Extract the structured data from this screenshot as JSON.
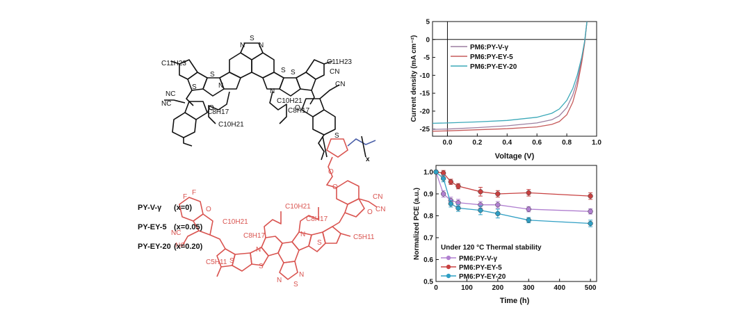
{
  "structure": {
    "labels_top": [
      "N",
      "S",
      "N",
      "C11H23",
      "C11H23",
      "S",
      "S",
      "N",
      "N",
      "S",
      "S",
      "C8H17",
      "C8H17",
      "C10H21",
      "C10H21",
      "NC",
      "NC",
      "CN",
      "CN",
      "O",
      "O",
      "S",
      "x"
    ],
    "labels_bottom": [
      "F",
      "F",
      "C10H21",
      "C8H17",
      "C10H21",
      "C8H17",
      "N",
      "N",
      "S",
      "S",
      "S",
      "S",
      "N",
      "N",
      "C5H11",
      "C5H11",
      "NC",
      "NC",
      "CN",
      "CN",
      "O",
      "O",
      "O",
      "O"
    ],
    "colors": {
      "top": "#111111",
      "bottom": "#d9534f",
      "side_chain": "#4a5fa8"
    }
  },
  "legend_copolymers": [
    {
      "name": "PY-V-γ",
      "x": "(x=0)"
    },
    {
      "name": "PY-EY-5",
      "x": "(x=0.05)"
    },
    {
      "name": "PY-EY-20",
      "x": "(x=0.20)"
    }
  ],
  "chart_data": [
    {
      "type": "line",
      "xlabel": "Voltage (V)",
      "ylabel": "Current density (mA cm⁻²)",
      "xlim": [
        -0.1,
        1.0
      ],
      "ylim": [
        -27,
        5
      ],
      "xticks": [
        0.0,
        0.2,
        0.4,
        0.6,
        0.8,
        1.0
      ],
      "yticks": [
        5,
        0,
        -5,
        -10,
        -15,
        -20,
        -25
      ],
      "xtick_labels": [
        "0.0",
        "0.2",
        "0.4",
        "0.6",
        "0.8",
        "1.0"
      ],
      "ytick_labels": [
        "5",
        "0",
        "-5",
        "-10",
        "-15",
        "-20",
        "-25"
      ],
      "legend_position": "top-left",
      "series": [
        {
          "name": "PM6:PY-V-γ",
          "color": "#9b7fa0",
          "x": [
            -0.1,
            0.0,
            0.2,
            0.4,
            0.6,
            0.7,
            0.75,
            0.8,
            0.84,
            0.87,
            0.9,
            0.92,
            0.935
          ],
          "y": [
            -25.1,
            -25.0,
            -24.6,
            -24.1,
            -23.3,
            -22.4,
            -21.3,
            -19.0,
            -15.5,
            -11.5,
            -5.5,
            -0.5,
            5.0
          ]
        },
        {
          "name": "PM6:PY-EY-5",
          "color": "#c65a5a",
          "x": [
            -0.1,
            0.0,
            0.2,
            0.4,
            0.6,
            0.7,
            0.75,
            0.8,
            0.84,
            0.87,
            0.9,
            0.92,
            0.935
          ],
          "y": [
            -25.6,
            -25.5,
            -25.2,
            -24.9,
            -24.4,
            -23.7,
            -22.9,
            -21.0,
            -17.5,
            -13.0,
            -6.5,
            -1.0,
            5.0
          ]
        },
        {
          "name": "PM6:PY-EY-20",
          "color": "#3aa8b8",
          "x": [
            -0.1,
            0.0,
            0.2,
            0.4,
            0.6,
            0.7,
            0.75,
            0.8,
            0.84,
            0.87,
            0.9,
            0.92,
            0.935
          ],
          "y": [
            -23.4,
            -23.3,
            -23.0,
            -22.6,
            -21.7,
            -20.6,
            -19.4,
            -17.0,
            -13.7,
            -10.0,
            -5.0,
            -0.5,
            5.0
          ]
        }
      ]
    },
    {
      "type": "line",
      "xlabel": "Time (h)",
      "ylabel": "Normalized PCE (a.u.)",
      "annotation": "Under 120 °C Thermal stability",
      "xlim": [
        0,
        520
      ],
      "ylim": [
        0.5,
        1.03
      ],
      "xticks": [
        0,
        100,
        200,
        300,
        400,
        500
      ],
      "yticks": [
        0.5,
        0.6,
        0.7,
        0.8,
        0.9,
        1.0
      ],
      "xtick_labels": [
        "0",
        "100",
        "200",
        "300",
        "400",
        "500"
      ],
      "ytick_labels": [
        "0.5",
        "0.6",
        "0.7",
        "0.8",
        "0.9",
        "1.0"
      ],
      "legend_position": "bottom-left",
      "series": [
        {
          "name": "PM6:PY-V-γ",
          "color": "#b07fd0",
          "x": [
            0,
            24,
            48,
            72,
            144,
            200,
            300,
            500
          ],
          "y": [
            1.0,
            0.9,
            0.87,
            0.86,
            0.85,
            0.85,
            0.83,
            0.82
          ],
          "err": [
            0.0,
            0.015,
            0.015,
            0.015,
            0.015,
            0.015,
            0.012,
            0.012
          ]
        },
        {
          "name": "PM6:PY-EY-5",
          "color": "#c84040",
          "x": [
            0,
            24,
            48,
            72,
            144,
            200,
            300,
            500
          ],
          "y": [
            1.0,
            0.995,
            0.955,
            0.935,
            0.91,
            0.9,
            0.905,
            0.89
          ],
          "err": [
            0.0,
            0.012,
            0.012,
            0.012,
            0.02,
            0.015,
            0.015,
            0.015
          ]
        },
        {
          "name": "PM6:PY-EY-20",
          "color": "#2f9fc4",
          "x": [
            0,
            24,
            48,
            72,
            144,
            200,
            300,
            500
          ],
          "y": [
            1.0,
            0.97,
            0.855,
            0.835,
            0.825,
            0.81,
            0.78,
            0.765
          ],
          "err": [
            0.0,
            0.015,
            0.015,
            0.015,
            0.02,
            0.02,
            0.012,
            0.015
          ]
        }
      ]
    }
  ]
}
